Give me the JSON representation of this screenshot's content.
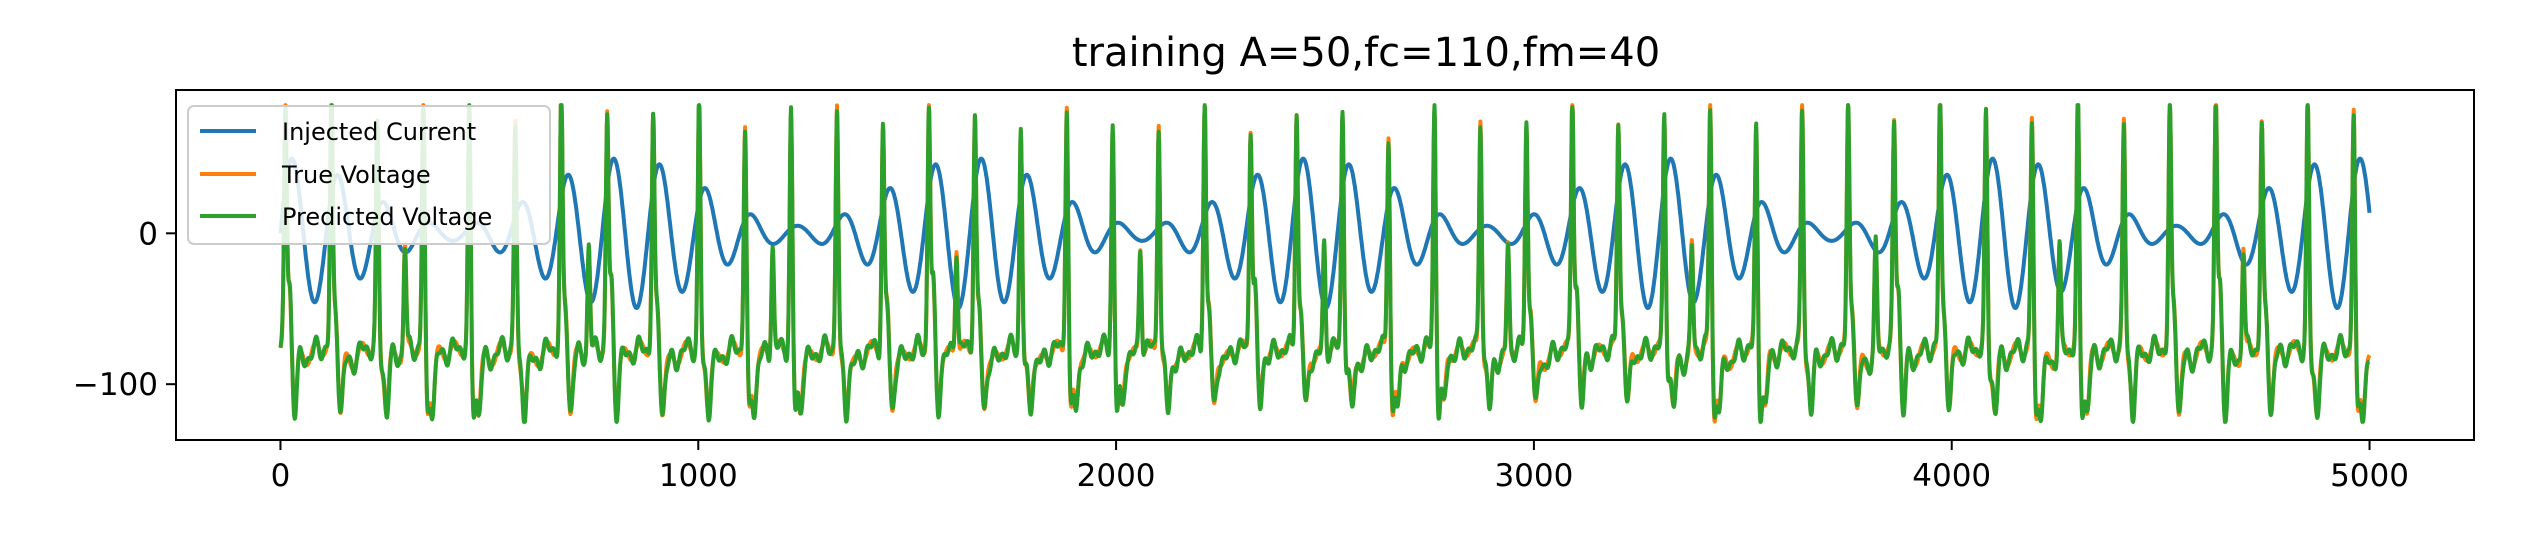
{
  "chart_data": {
    "type": "line",
    "title": "training A=50,fc=110,fm=40",
    "xlabel": "",
    "ylabel": "",
    "xlim": [
      -250,
      5250
    ],
    "ylim": [
      -137,
      95
    ],
    "x_ticks": [
      0,
      1000,
      2000,
      3000,
      4000,
      5000
    ],
    "x_tick_labels": [
      "0",
      "1000",
      "2000",
      "3000",
      "4000",
      "5000"
    ],
    "y_ticks": [
      0,
      -100
    ],
    "y_tick_labels": [
      "0",
      "−100"
    ],
    "grid": false,
    "legend_position": "upper left",
    "series": [
      {
        "name": "Injected Current",
        "color": "#1f77b4",
        "model": "amplitude-modulated sinusoid",
        "amplitude": 50,
        "fc": 110,
        "fm": 40,
        "x_range": [
          0,
          5000
        ]
      },
      {
        "name": "True Voltage",
        "color": "#ff7f0e",
        "x_range": [
          0,
          5000
        ],
        "y_range": [
          -125,
          85
        ]
      },
      {
        "name": "Predicted Voltage",
        "color": "#2ca02c",
        "x_range": [
          0,
          5000
        ],
        "y_range": [
          -125,
          85
        ]
      }
    ]
  }
}
